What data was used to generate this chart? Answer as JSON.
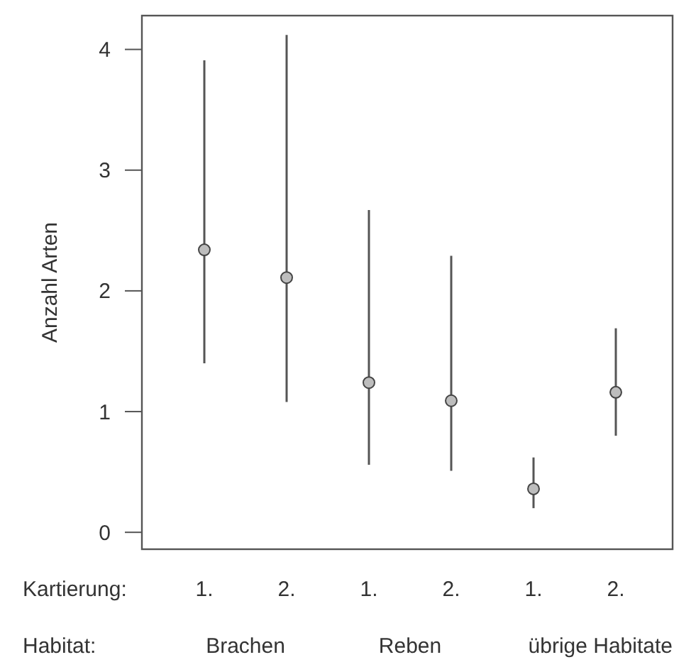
{
  "chart_data": {
    "type": "scatter",
    "ylabel": "Anzahl Arten",
    "categories": [
      "1.",
      "2.",
      "1.",
      "2.",
      "1.",
      "2."
    ],
    "values": [
      2.34,
      2.11,
      1.24,
      1.09,
      0.36,
      1.16
    ],
    "errors": [
      [
        1.4,
        3.91
      ],
      [
        1.08,
        4.12
      ],
      [
        0.56,
        2.67
      ],
      [
        0.51,
        2.29
      ],
      [
        0.2,
        0.62
      ],
      [
        0.8,
        1.69
      ]
    ],
    "color": "#bdbdbd",
    "marker": "circle",
    "ylim": [
      -0.14,
      4.28
    ],
    "yticks": [
      0,
      1,
      2,
      3,
      4
    ],
    "grid": false,
    "annotations": [
      "Kartierung:",
      "Habitat:",
      "Brachen",
      "Reben",
      "übrige Habitate"
    ]
  }
}
